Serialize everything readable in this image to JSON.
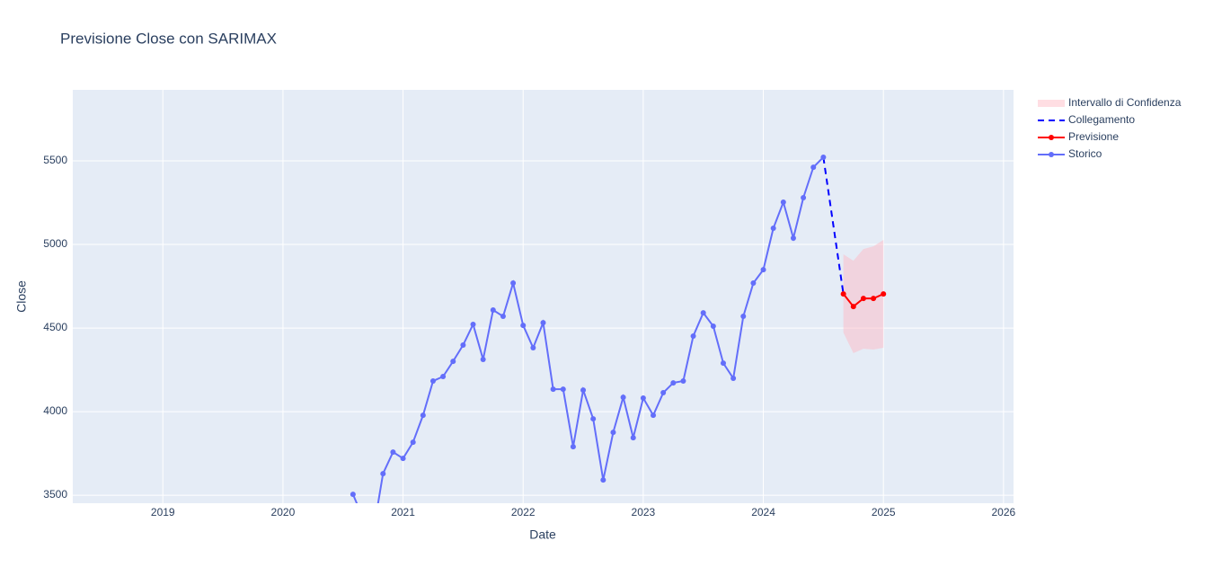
{
  "chart_data": {
    "type": "line",
    "title": "Previsione Close con SARIMAX",
    "x_label": "Date",
    "y_label": "Close",
    "xlim": [
      "2018-04",
      "2026-02"
    ],
    "xticks": [
      "2019",
      "2020",
      "2021",
      "2022",
      "2023",
      "2024",
      "2025",
      "2026"
    ],
    "ylim": [
      3452,
      5925
    ],
    "yticks": [
      3500,
      4000,
      4500,
      5000,
      5500
    ],
    "grid": true,
    "series": [
      {
        "name": "Intervallo di Confidenza",
        "kind": "band",
        "color": "rgba(255,182,193,0.45)",
        "x": [
          "2024-09",
          "2024-10",
          "2024-11",
          "2024-12",
          "2025-01"
        ],
        "upper": [
          4941,
          4903,
          4973,
          4989,
          5027
        ],
        "lower": [
          4473,
          4350,
          4376,
          4371,
          4382
        ]
      },
      {
        "name": "Collegamento",
        "kind": "dash",
        "color": "#0000ff",
        "x": [
          "2024-07",
          "2024-09"
        ],
        "values": [
          5522,
          4704
        ]
      },
      {
        "name": "Previsione",
        "kind": "markers",
        "color": "#ff0000",
        "x": [
          "2024-09",
          "2024-10",
          "2024-11",
          "2024-12",
          "2025-01"
        ],
        "values": [
          4704,
          4629,
          4677,
          4677,
          4704
        ]
      },
      {
        "name": "Storico",
        "kind": "markers",
        "color": "#636efa",
        "x": [
          "2020-08",
          "2020-09",
          "2020-10",
          "2020-11",
          "2020-12",
          "2021-01",
          "2021-02",
          "2021-03",
          "2021-04",
          "2021-05",
          "2021-06",
          "2021-07",
          "2021-08",
          "2021-09",
          "2021-10",
          "2021-11",
          "2021-12",
          "2022-01",
          "2022-02",
          "2022-03",
          "2022-04",
          "2022-05",
          "2022-06",
          "2022-07",
          "2022-08",
          "2022-09",
          "2022-10",
          "2022-11",
          "2022-12",
          "2023-01",
          "2023-02",
          "2023-03",
          "2023-04",
          "2023-05",
          "2023-06",
          "2023-07",
          "2023-08",
          "2023-09",
          "2023-10",
          "2023-11",
          "2023-12",
          "2024-01",
          "2024-02",
          "2024-03",
          "2024-04",
          "2024-05",
          "2024-06",
          "2024-07"
        ],
        "values": [
          3505,
          3363,
          3270,
          3629,
          3758,
          3720,
          3817,
          3978,
          4183,
          4210,
          4301,
          4398,
          4522,
          4312,
          4608,
          4570,
          4769,
          4516,
          4382,
          4532,
          4134,
          4134,
          3790,
          4129,
          3957,
          3591,
          3876,
          4086,
          3844,
          4081,
          3978,
          4113,
          4172,
          4183,
          4452,
          4591,
          4511,
          4290,
          4199,
          4570,
          4769,
          4849,
          5097,
          5253,
          5038,
          5280,
          5462,
          5522
        ]
      }
    ]
  }
}
